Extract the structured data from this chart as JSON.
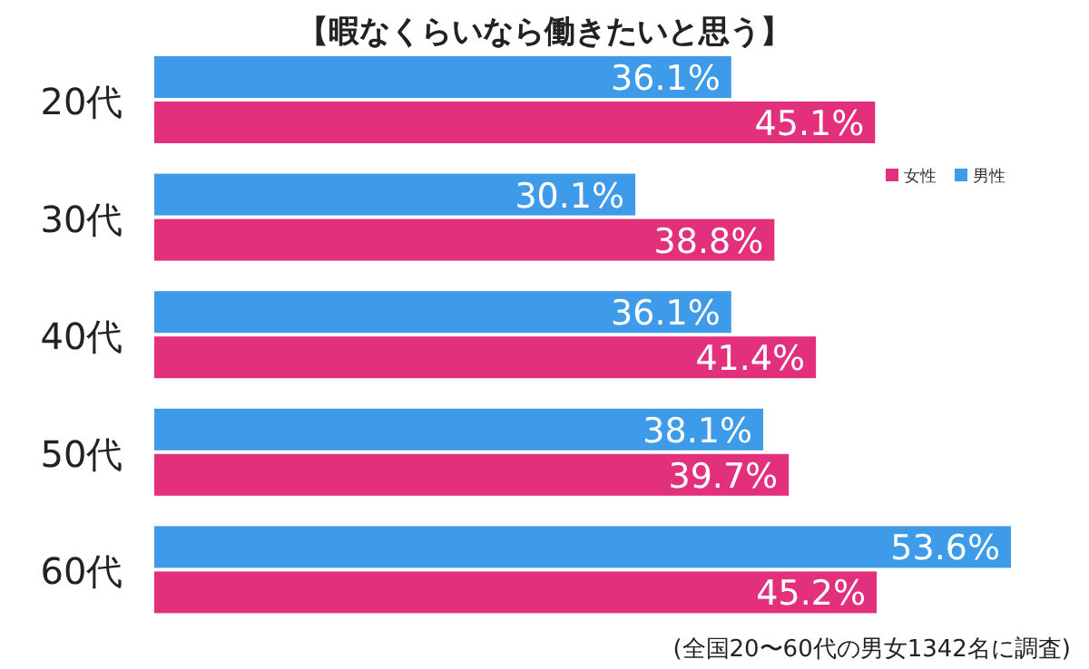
{
  "chart_data": {
    "type": "bar",
    "orientation": "horizontal",
    "title": "【暇なくらいなら働きたいと思う】",
    "categories": [
      "20代",
      "30代",
      "40代",
      "50代",
      "60代"
    ],
    "series": [
      {
        "name": "男性",
        "color": "#3d9be9",
        "values": [
          36.1,
          30.1,
          36.1,
          38.1,
          53.6
        ],
        "value_labels": [
          "36.1%",
          "30.1%",
          "36.1%",
          "38.1%",
          "53.6%"
        ]
      },
      {
        "name": "女性",
        "color": "#e2307c",
        "values": [
          45.1,
          38.8,
          41.4,
          39.7,
          45.2
        ],
        "value_labels": [
          "45.1%",
          "38.8%",
          "41.4%",
          "39.7%",
          "45.2%"
        ]
      }
    ],
    "legend": "right",
    "annotations": [
      "(全国20〜60代の男女1342名に調査)"
    ]
  }
}
